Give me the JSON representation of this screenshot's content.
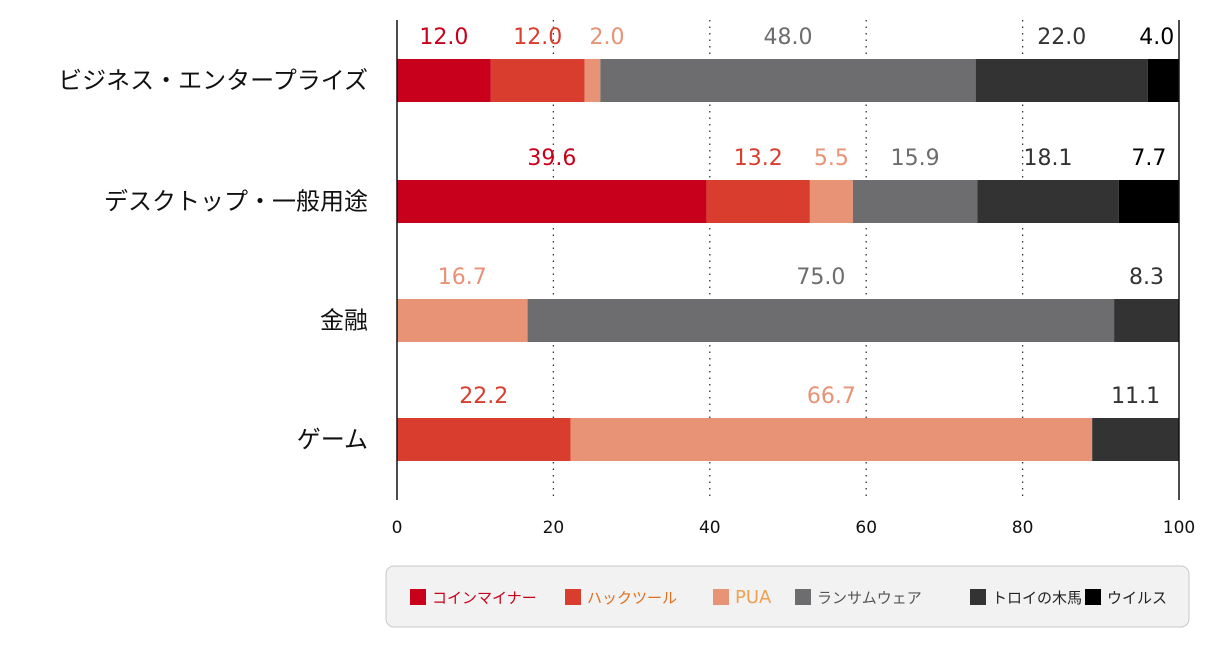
{
  "chart_data": {
    "type": "bar",
    "orientation": "horizontal",
    "stacked": true,
    "categories": [
      "ビジネス・エンタープライズ",
      "デスクトップ・一般用途",
      "金融",
      "ゲーム"
    ],
    "series": [
      {
        "name": "コインマイナー",
        "color": "#c8001c",
        "label_color": "#c8001c",
        "values": [
          12.0,
          39.6,
          0,
          0
        ]
      },
      {
        "name": "ハックツール",
        "color": "#d93d2e",
        "label_color": "#d93d2e",
        "values": [
          12.0,
          13.2,
          0,
          22.2
        ]
      },
      {
        "name": "PUA",
        "color": "#e89276",
        "label_color": "#e89276",
        "values": [
          2.0,
          5.5,
          16.7,
          66.7
        ]
      },
      {
        "name": "ランサムウェア",
        "color": "#6d6d70",
        "label_color": "#6d6d70",
        "values": [
          48.0,
          15.9,
          75.0,
          0
        ]
      },
      {
        "name": "トロイの木馬",
        "color": "#333333",
        "label_color": "#333333",
        "values": [
          22.0,
          18.1,
          8.3,
          11.1
        ]
      },
      {
        "name": "ウイルス",
        "color": "#000000",
        "label_color": "#000000",
        "values": [
          4.0,
          7.7,
          0,
          0
        ]
      }
    ],
    "value_labels": [
      [
        "12.0",
        "12.0",
        "2.0",
        "48.0",
        "22.0",
        "4.0"
      ],
      [
        "39.6",
        "13.2",
        "5.5",
        "15.9",
        "18.1",
        "7.7"
      ],
      [
        "",
        "",
        "16.7",
        "75.0",
        "8.3",
        ""
      ],
      [
        "",
        "22.2",
        "66.7",
        "",
        "11.1",
        ""
      ]
    ],
    "xlim": [
      0,
      100
    ],
    "xticks": [
      0,
      20,
      40,
      60,
      80,
      100
    ],
    "xtick_labels": [
      "0",
      "20",
      "40",
      "60",
      "80",
      "100"
    ],
    "grid": "dotted vertical",
    "legend_position": "bottom",
    "legend_label_colors": [
      "#c8001c",
      "#e07020",
      "#f0a050",
      "#555555",
      "#222222",
      "#222222"
    ]
  }
}
